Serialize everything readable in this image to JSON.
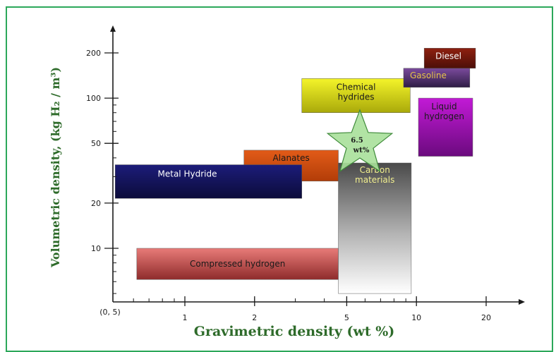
{
  "chart_data": {
    "type": "area",
    "title": "",
    "xlabel": "Gravimetric density (wt %)",
    "ylabel": "Volumetric density, (kg H₂ / m³)",
    "x_scale": "log",
    "y_scale": "log",
    "origin_label": "(0, 5)",
    "xlim": [
      0.4,
      30
    ],
    "ylim": [
      5,
      250
    ],
    "x_ticks": [
      {
        "value": 1,
        "label": "1"
      },
      {
        "value": 2,
        "label": "2"
      },
      {
        "value": 5,
        "label": "5"
      },
      {
        "value": 10,
        "label": "10"
      },
      {
        "value": 20,
        "label": "20"
      }
    ],
    "y_ticks": [
      {
        "value": 10,
        "label": "10"
      },
      {
        "value": 20,
        "label": "20"
      },
      {
        "value": 50,
        "label": "50"
      },
      {
        "value": 100,
        "label": "100"
      },
      {
        "value": 200,
        "label": "200"
      }
    ],
    "regions": [
      {
        "name": "Compressed hydrogen",
        "x": [
          0.62,
          4.6
        ],
        "y": [
          6.2,
          10.0
        ],
        "color": "#c9504f",
        "text_color": "#1a1a1a"
      },
      {
        "name": "Metal Hydride",
        "x": [
          0.5,
          3.2
        ],
        "y": [
          21.5,
          36
        ],
        "color": "#1b1b6e",
        "text_color": "#ffffff"
      },
      {
        "name": "Alanates",
        "x": [
          1.8,
          4.6
        ],
        "y": [
          28,
          45
        ],
        "color": "#d9591a",
        "text_color": "#1a1a1a"
      },
      {
        "name": "Carbon materials",
        "x": [
          4.6,
          9.5
        ],
        "y": [
          5,
          37
        ],
        "color": "#7d7d7d",
        "text_color": "#f2ef8f"
      },
      {
        "name": "Chemical hydrides",
        "x": [
          3.2,
          9.4
        ],
        "y": [
          80,
          135
        ],
        "color": "#d7d70f",
        "text_color": "#1a1a1a"
      },
      {
        "name": "Liquid hydrogen",
        "x": [
          10.2,
          17.5
        ],
        "y": [
          41,
          100
        ],
        "color": "#9b0fb0",
        "text_color": "#1a1a1a"
      },
      {
        "name": "Gasoline",
        "x": [
          8.8,
          17.0
        ],
        "y": [
          118,
          158
        ],
        "color": "#4d2f6e",
        "text_color": "#e6c34a"
      },
      {
        "name": "Diesel",
        "x": [
          10.8,
          18.0
        ],
        "y": [
          158,
          215
        ],
        "color": "#6e180f",
        "text_color": "#ffffff"
      }
    ],
    "marker": {
      "shape": "star",
      "label_line1": "6.5",
      "label_line2": "wt%",
      "x": 6.5,
      "y": 50,
      "color": "#a8e09a"
    },
    "grid": false
  }
}
